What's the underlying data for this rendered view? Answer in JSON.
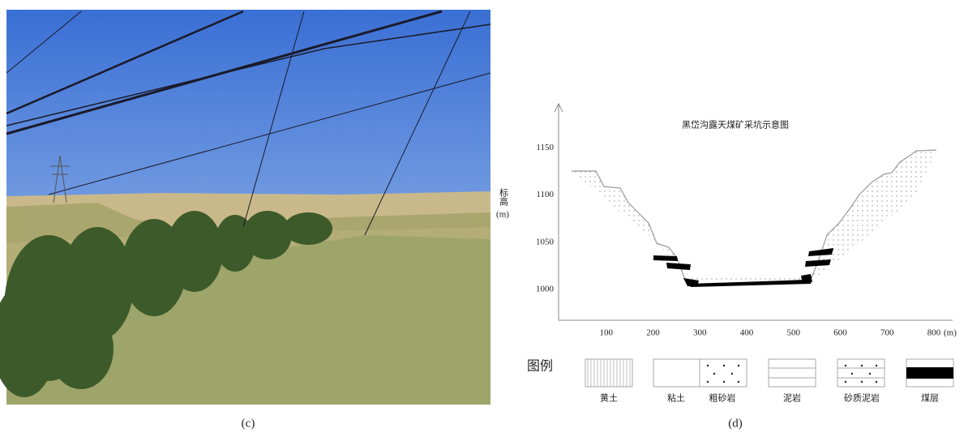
{
  "photo_panel": {
    "caption": "(c)"
  },
  "diagram_panel": {
    "caption": "(d)",
    "title": "黑岱沟露天煤矿采坑示意图",
    "y_label": "标高",
    "y_unit": "(m)",
    "y_ticks": [
      1000,
      1050,
      1100,
      1150
    ],
    "x_ticks": [
      100,
      200,
      300,
      400,
      500,
      600,
      700,
      800
    ],
    "x_unit": "(m)",
    "legend_title": "图例",
    "legend": [
      "黄土",
      "粘土",
      "粗砂岩",
      "泥岩",
      "砂质泥岩",
      "煤层"
    ]
  }
}
